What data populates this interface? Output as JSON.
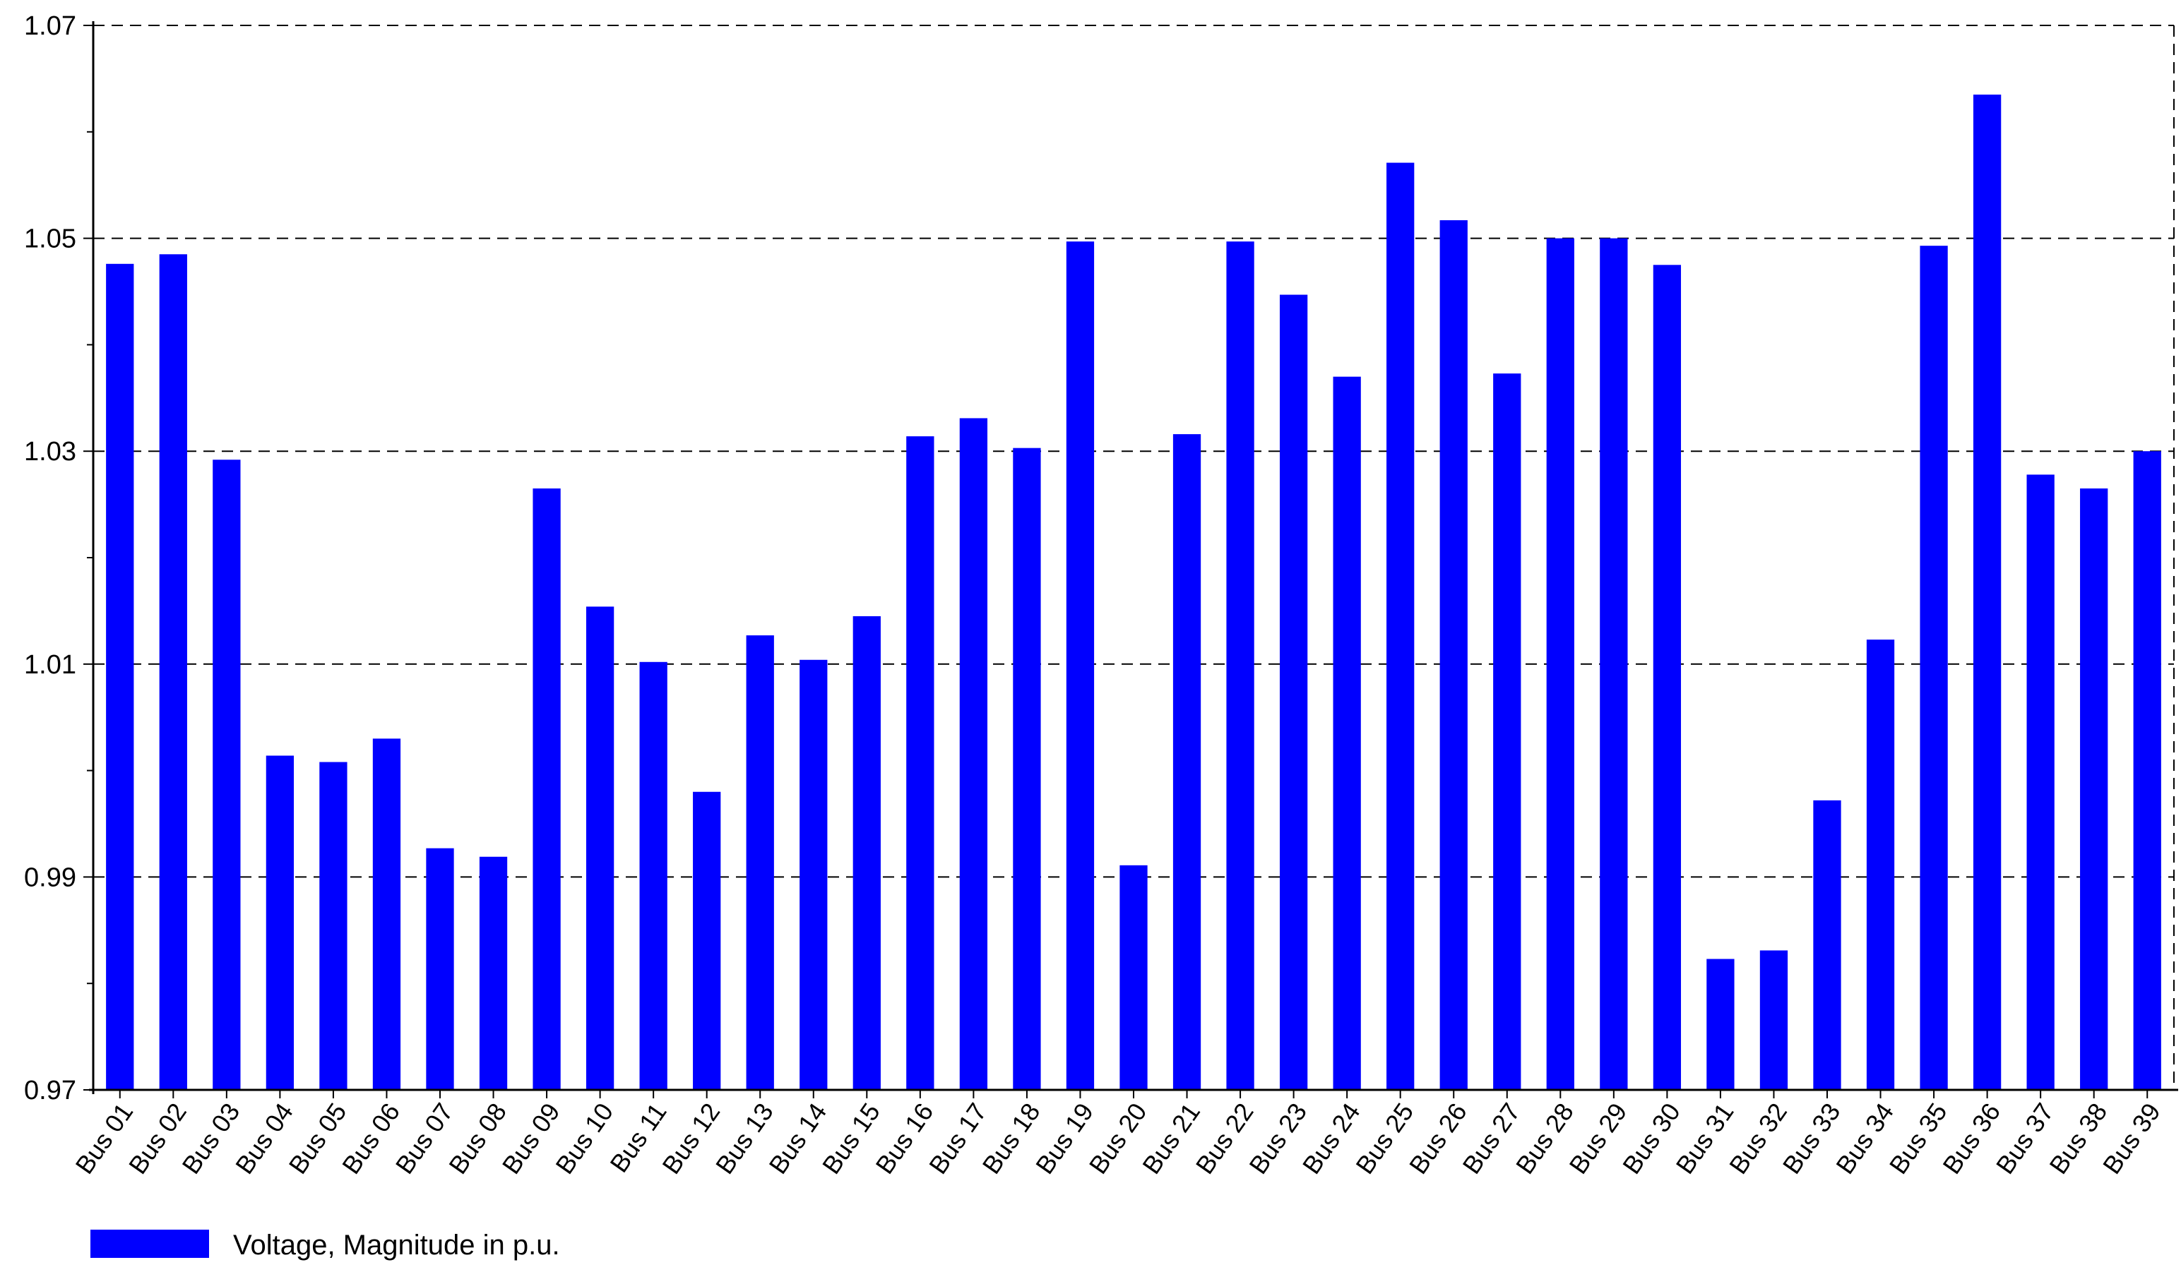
{
  "chart_data": {
    "type": "bar",
    "title": "",
    "xlabel": "",
    "ylabel": "",
    "ylim": [
      0.97,
      1.07
    ],
    "yticks": [
      0.97,
      0.99,
      1.01,
      1.03,
      1.05,
      1.07
    ],
    "ytick_labels": [
      "0.97",
      "0.99",
      "1.01",
      "1.03",
      "1.05",
      "1.07"
    ],
    "grid": "horizontal dashed at labeled ticks",
    "legend_position": "bottom-left",
    "bar_color": "#0000ff",
    "categories": [
      "Bus 01",
      "Bus 02",
      "Bus 03",
      "Bus 04",
      "Bus 05",
      "Bus 06",
      "Bus 07",
      "Bus 08",
      "Bus 09",
      "Bus 10",
      "Bus 11",
      "Bus 12",
      "Bus 13",
      "Bus 14",
      "Bus 15",
      "Bus 16",
      "Bus 17",
      "Bus 18",
      "Bus 19",
      "Bus 20",
      "Bus 21",
      "Bus 22",
      "Bus 23",
      "Bus 24",
      "Bus 25",
      "Bus 26",
      "Bus 27",
      "Bus 28",
      "Bus 29",
      "Bus 30",
      "Bus 31",
      "Bus 32",
      "Bus 33",
      "Bus 34",
      "Bus 35",
      "Bus 36",
      "Bus 37",
      "Bus 38",
      "Bus 39"
    ],
    "series": [
      {
        "name": "Voltage, Magnitude in p.u.",
        "values": [
          1.0476,
          1.0485,
          1.0292,
          1.0014,
          1.0008,
          1.003,
          0.9927,
          0.9919,
          1.0265,
          1.0154,
          1.0102,
          0.998,
          1.0127,
          1.0104,
          1.0145,
          1.0314,
          1.0331,
          1.0303,
          1.0497,
          0.9911,
          1.0316,
          1.0497,
          1.0447,
          1.037,
          1.0571,
          1.0517,
          1.0373,
          1.05,
          1.05,
          1.0475,
          0.9823,
          0.9831,
          0.9972,
          1.0123,
          1.0493,
          1.0635,
          1.0278,
          1.0265,
          1.03
        ]
      }
    ]
  }
}
